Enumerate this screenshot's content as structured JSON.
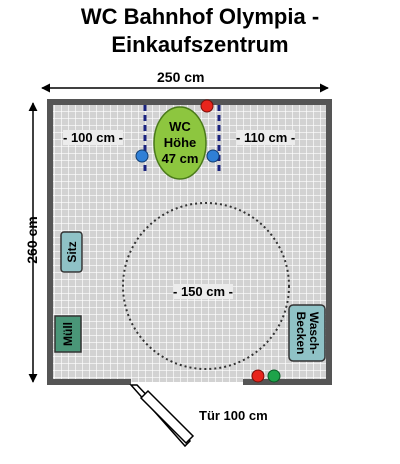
{
  "title": {
    "line1": "WC Bahnhof Olympia -",
    "line2": "Einkaufszentrum"
  },
  "dimensions": {
    "width": "250 cm",
    "height": "260 cm",
    "left_clearance": "- 100 cm -",
    "right_clearance": "- 110 cm -",
    "turning_circle": "- 150 cm -",
    "door": "Tür 100 cm"
  },
  "fixtures": {
    "wc_line1": "WC",
    "wc_line2": "Höhe",
    "wc_line3": "47 cm",
    "seat": "Sitz",
    "bin": "Müll",
    "sink_line1": "Wasch-",
    "sink_line2": "Becken"
  },
  "colors": {
    "wall": "#555555",
    "floor": "#d2d2d2",
    "grid": "#ffffff",
    "wc": "#8dc63f",
    "seat": "#8fc2c6",
    "bin": "#4a9678",
    "sink": "#8fc2c6",
    "button_red": "#e8251c",
    "button_green": "#1ea34a",
    "button_blue": "#2f7fd6",
    "grab_bar": "#1a237e"
  }
}
